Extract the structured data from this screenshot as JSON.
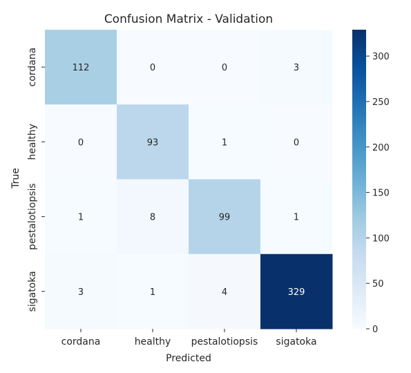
{
  "chart_data": {
    "type": "heatmap",
    "title": "Confusion Matrix - Validation",
    "xlabel": "Predicted",
    "ylabel": "True",
    "x_categories": [
      "cordana",
      "healthy",
      "pestalotiopsis",
      "sigatoka"
    ],
    "y_categories": [
      "cordana",
      "healthy",
      "pestalotiopsis",
      "sigatoka"
    ],
    "values": [
      [
        112,
        0,
        0,
        3
      ],
      [
        0,
        93,
        1,
        0
      ],
      [
        1,
        8,
        99,
        1
      ],
      [
        3,
        1,
        4,
        329
      ]
    ],
    "colormap": "Blues",
    "color_range": [
      0,
      329
    ],
    "colorbar_ticks": [
      0,
      50,
      100,
      150,
      200,
      250,
      300
    ]
  }
}
